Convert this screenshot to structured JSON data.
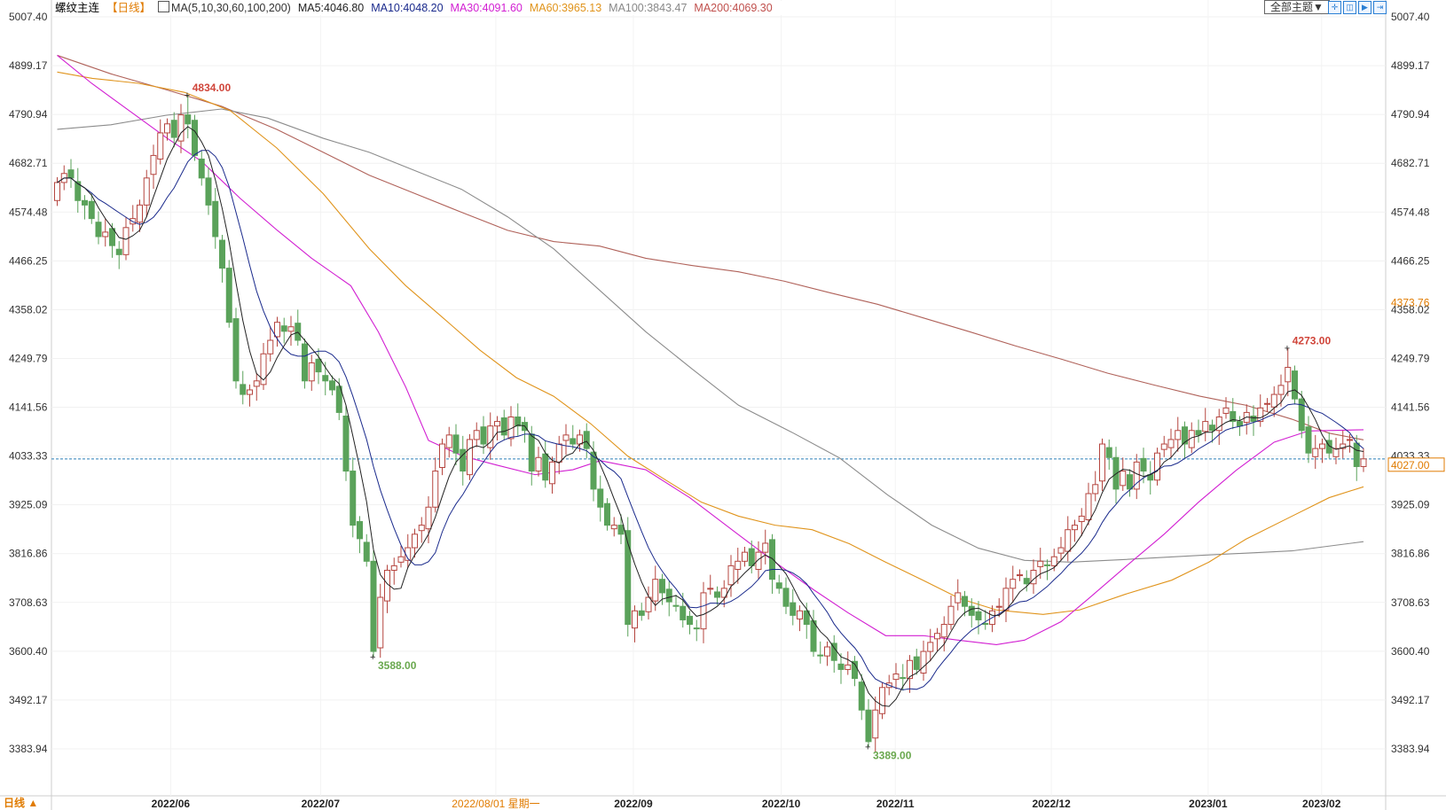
{
  "header": {
    "symbol": "螺纹主连",
    "period": "【日线】",
    "ma_params": "MA(5,10,30,60,100,200)",
    "ma_values": [
      {
        "label": "MA5:4046.80",
        "color": "#222222"
      },
      {
        "label": "MA10:4048.20",
        "color": "#1a2a8c"
      },
      {
        "label": "MA30:4091.60",
        "color": "#d21fd2"
      },
      {
        "label": "MA60:3965.13",
        "color": "#e0941c"
      },
      {
        "label": "MA100:3843.47",
        "color": "#888888"
      },
      {
        "label": "MA200:4069.30",
        "color": "#c0504d"
      }
    ]
  },
  "toolbar": {
    "theme_label": "全部主题▼",
    "tools": [
      "move-icon",
      "zoom-range-icon",
      "step-forward-icon",
      "goto-end-icon"
    ]
  },
  "footer": {
    "period_toggle": "日线 ▲"
  },
  "colors": {
    "up": "#b5453f",
    "down": "#5aa25a",
    "current_line": "#2a7fb8",
    "highlight": "#e07b00"
  },
  "chart_data": {
    "type": "candlestick",
    "y_ticks": [
      "5007.40",
      "4899.17",
      "4790.94",
      "4682.71",
      "4574.48",
      "4466.25",
      "4358.02",
      "4249.79",
      "4141.56",
      "4033.33",
      "3925.09",
      "3816.86",
      "3708.63",
      "3600.40",
      "3492.17",
      "3383.94"
    ],
    "ylim": [
      3383.94,
      5007.4
    ],
    "x_ticks": [
      {
        "label": "2022/06",
        "index": 16.5
      },
      {
        "label": "2022/07",
        "index": 38.3
      },
      {
        "label": "2022/08/01 星期一",
        "index": 63.8,
        "highlight": true
      },
      {
        "label": "2022/09",
        "index": 83.8
      },
      {
        "label": "2022/10",
        "index": 105.3
      },
      {
        "label": "2022/11",
        "index": 121.9
      },
      {
        "label": "2022/12",
        "index": 144.6
      },
      {
        "label": "2023/01",
        "index": 167.4
      },
      {
        "label": "2023/02",
        "index": 183.9
      }
    ],
    "crosshair_price": "4373.76",
    "last_price": "4027.00",
    "last_price_value": 4027,
    "first_open": 4600,
    "closes": [
      4640,
      4660,
      4650,
      4600,
      4590,
      4560,
      4520,
      4530,
      4500,
      4480,
      4540,
      4560,
      4590,
      4650,
      4700,
      4750,
      4770,
      4740,
      4790,
      4770,
      4700,
      4650,
      4590,
      4520,
      4450,
      4330,
      4200,
      4170,
      4180,
      4200,
      4260,
      4290,
      4330,
      4310,
      4320,
      4290,
      4200,
      4240,
      4220,
      4200,
      4180,
      4130,
      4000,
      3880,
      3850,
      3800,
      3600,
      3720,
      3780,
      3790,
      3810,
      3830,
      3860,
      3880,
      3920,
      4000,
      4060,
      4080,
      4040,
      4000,
      4070,
      4090,
      4060,
      4100,
      4110,
      4080,
      4120,
      4100,
      4090,
      4000,
      4030,
      3980,
      4020,
      4060,
      4080,
      4060,
      4080,
      4050,
      3960,
      3920,
      3880,
      3880,
      3860,
      3660,
      3690,
      3680,
      3720,
      3760,
      3730,
      3710,
      3700,
      3670,
      3660,
      3650,
      3730,
      3740,
      3720,
      3740,
      3790,
      3800,
      3820,
      3790,
      3820,
      3840,
      3760,
      3740,
      3700,
      3680,
      3690,
      3660,
      3600,
      3590,
      3610,
      3580,
      3560,
      3570,
      3540,
      3470,
      3400,
      3470,
      3520,
      3530,
      3550,
      3540,
      3580,
      3560,
      3600,
      3620,
      3640,
      3660,
      3700,
      3730,
      3700,
      3680,
      3670,
      3660,
      3690,
      3700,
      3740,
      3760,
      3770,
      3750,
      3780,
      3800,
      3790,
      3810,
      3830,
      3870,
      3880,
      3900,
      3950,
      3970,
      4060,
      4030,
      3960,
      4000,
      3960,
      4020,
      4000,
      3980,
      4040,
      4060,
      4070,
      4090,
      4060,
      4090,
      4080,
      4110,
      4090,
      4120,
      4140,
      4110,
      4100,
      4130,
      4110,
      4140,
      4150,
      4170,
      4190,
      4230,
      4160,
      4090,
      4040,
      4050,
      4060,
      4040,
      4050,
      4060,
      4070,
      4010,
      4027
    ],
    "extremes": [
      {
        "label": "4834.00",
        "index": 19,
        "value": 4834,
        "type": "high"
      },
      {
        "label": "3588.00",
        "index": 46,
        "value": 3588,
        "type": "low"
      },
      {
        "label": "3389.00",
        "index": 118,
        "value": 3389,
        "type": "low"
      },
      {
        "label": "4273.00",
        "index": 179,
        "value": 4273,
        "type": "high"
      }
    ],
    "ma_series": [
      {
        "name": "MA30",
        "color": "#d21fd2",
        "points": [
          [
            0,
            4922
          ],
          [
            5,
            4860
          ],
          [
            10.5,
            4799
          ],
          [
            16,
            4738
          ],
          [
            21,
            4687
          ],
          [
            26.6,
            4605
          ],
          [
            32,
            4534
          ],
          [
            37,
            4472
          ],
          [
            42.7,
            4411
          ],
          [
            46.7,
            4309
          ],
          [
            50.7,
            4186
          ],
          [
            54,
            4068
          ],
          [
            59,
            4033
          ],
          [
            64,
            4013
          ],
          [
            69.5,
            3992
          ],
          [
            75,
            4003
          ],
          [
            79,
            4023
          ],
          [
            85.6,
            4003
          ],
          [
            92,
            3941
          ],
          [
            99,
            3860
          ],
          [
            104.4,
            3798
          ],
          [
            110,
            3737
          ],
          [
            115,
            3686
          ],
          [
            120.5,
            3635
          ],
          [
            126,
            3635
          ],
          [
            131,
            3625
          ],
          [
            136.6,
            3615
          ],
          [
            140.7,
            3625
          ],
          [
            146,
            3666
          ],
          [
            150,
            3717
          ],
          [
            155.4,
            3788
          ],
          [
            161,
            3860
          ],
          [
            166,
            3931
          ],
          [
            171.5,
            4002
          ],
          [
            177,
            4064
          ],
          [
            182,
            4089
          ],
          [
            190,
            4091.6
          ]
        ]
      },
      {
        "name": "MA60",
        "color": "#e0941c",
        "points": [
          [
            0,
            4885
          ],
          [
            5.1,
            4871
          ],
          [
            11.8,
            4860
          ],
          [
            18.5,
            4840
          ],
          [
            25.2,
            4799
          ],
          [
            31.9,
            4717
          ],
          [
            38.7,
            4615
          ],
          [
            45.4,
            4493
          ],
          [
            50.7,
            4411
          ],
          [
            56.1,
            4340
          ],
          [
            61.5,
            4268
          ],
          [
            66.8,
            4207
          ],
          [
            72.2,
            4166
          ],
          [
            77.6,
            4105
          ],
          [
            83,
            4033
          ],
          [
            88.3,
            3982
          ],
          [
            93.7,
            3931
          ],
          [
            99.1,
            3900
          ],
          [
            104.4,
            3880
          ],
          [
            109.8,
            3870
          ],
          [
            115.2,
            3839
          ],
          [
            120.5,
            3798
          ],
          [
            125.9,
            3758
          ],
          [
            131.3,
            3717
          ],
          [
            136.6,
            3692
          ],
          [
            143.4,
            3682
          ],
          [
            148.7,
            3692
          ],
          [
            155.4,
            3727
          ],
          [
            162.1,
            3758
          ],
          [
            167.5,
            3798
          ],
          [
            172.9,
            3849
          ],
          [
            179.6,
            3900
          ],
          [
            185,
            3941
          ],
          [
            190,
            3965.13
          ]
        ]
      },
      {
        "name": "MA100",
        "color": "#8c8c8c",
        "points": [
          [
            0,
            4758
          ],
          [
            7.8,
            4768
          ],
          [
            15.8,
            4789
          ],
          [
            23.9,
            4803
          ],
          [
            30.6,
            4783
          ],
          [
            38.7,
            4738
          ],
          [
            45.4,
            4707
          ],
          [
            52.1,
            4666
          ],
          [
            58.8,
            4625
          ],
          [
            65.5,
            4564
          ],
          [
            72.2,
            4493
          ],
          [
            78.9,
            4401
          ],
          [
            85.6,
            4309
          ],
          [
            92.3,
            4227
          ],
          [
            99.1,
            4146
          ],
          [
            107.1,
            4084
          ],
          [
            113.8,
            4029
          ],
          [
            120.8,
            3947
          ],
          [
            127.2,
            3880
          ],
          [
            134,
            3829
          ],
          [
            140.7,
            3802
          ],
          [
            147.4,
            3798
          ],
          [
            155.4,
            3804
          ],
          [
            166.2,
            3813
          ],
          [
            179.6,
            3823
          ],
          [
            190,
            3843.47
          ]
        ]
      },
      {
        "name": "MA200",
        "color": "#b0625a",
        "points": [
          [
            0,
            4922
          ],
          [
            7.8,
            4881
          ],
          [
            15.8,
            4846
          ],
          [
            23.9,
            4809
          ],
          [
            31.9,
            4758
          ],
          [
            38.7,
            4707
          ],
          [
            45.4,
            4656
          ],
          [
            52.1,
            4615
          ],
          [
            58.8,
            4574
          ],
          [
            65.5,
            4534
          ],
          [
            72.2,
            4509
          ],
          [
            78.9,
            4499
          ],
          [
            85.6,
            4472
          ],
          [
            92.3,
            4456
          ],
          [
            99.1,
            4442
          ],
          [
            105.8,
            4421
          ],
          [
            112.5,
            4395
          ],
          [
            119.3,
            4370
          ],
          [
            125.9,
            4340
          ],
          [
            132.7,
            4309
          ],
          [
            139.3,
            4278
          ],
          [
            146.1,
            4248
          ],
          [
            152.8,
            4217
          ],
          [
            159.5,
            4191
          ],
          [
            166.2,
            4166
          ],
          [
            172.9,
            4146
          ],
          [
            179.6,
            4115
          ],
          [
            185,
            4084
          ],
          [
            190,
            4069.3
          ]
        ]
      }
    ]
  }
}
